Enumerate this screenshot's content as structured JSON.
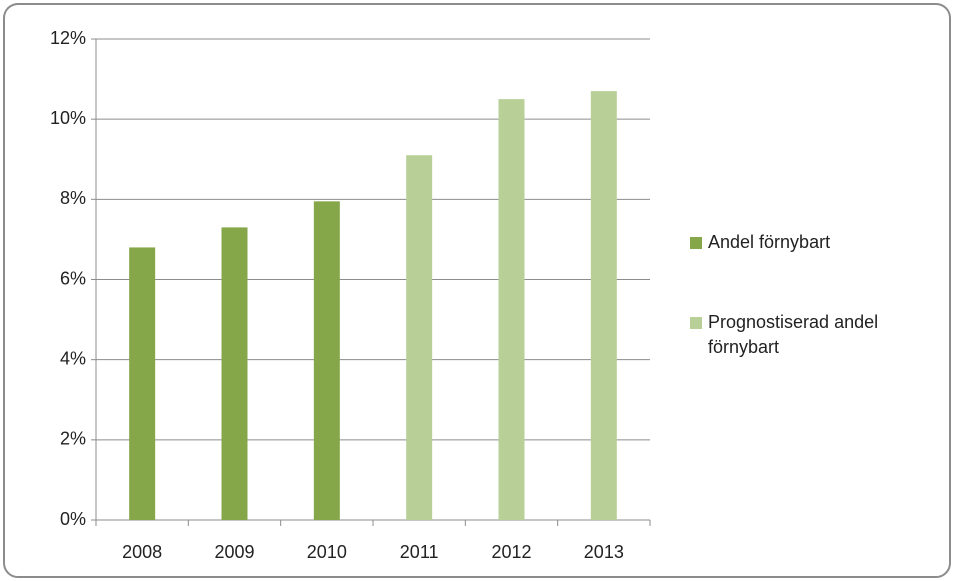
{
  "chart_data": {
    "type": "bar",
    "categories": [
      "2008",
      "2009",
      "2010",
      "2011",
      "2012",
      "2013"
    ],
    "series": [
      {
        "name": "Andel förnybart",
        "color": "#86a64a",
        "values": [
          6.8,
          7.3,
          7.95,
          null,
          null,
          null
        ]
      },
      {
        "name": "Prognostiserad andel förnybart",
        "color": "#b8d098",
        "values": [
          null,
          null,
          null,
          9.1,
          10.5,
          10.7
        ]
      }
    ],
    "ylim": [
      0,
      12
    ],
    "yticks": [
      {
        "value": 0,
        "label": "0%"
      },
      {
        "value": 2,
        "label": "2%"
      },
      {
        "value": 4,
        "label": "4%"
      },
      {
        "value": 6,
        "label": "6%"
      },
      {
        "value": 8,
        "label": "8%"
      },
      {
        "value": 10,
        "label": "10%"
      },
      {
        "value": 12,
        "label": "12%"
      }
    ],
    "grid": true,
    "legend": "right"
  }
}
